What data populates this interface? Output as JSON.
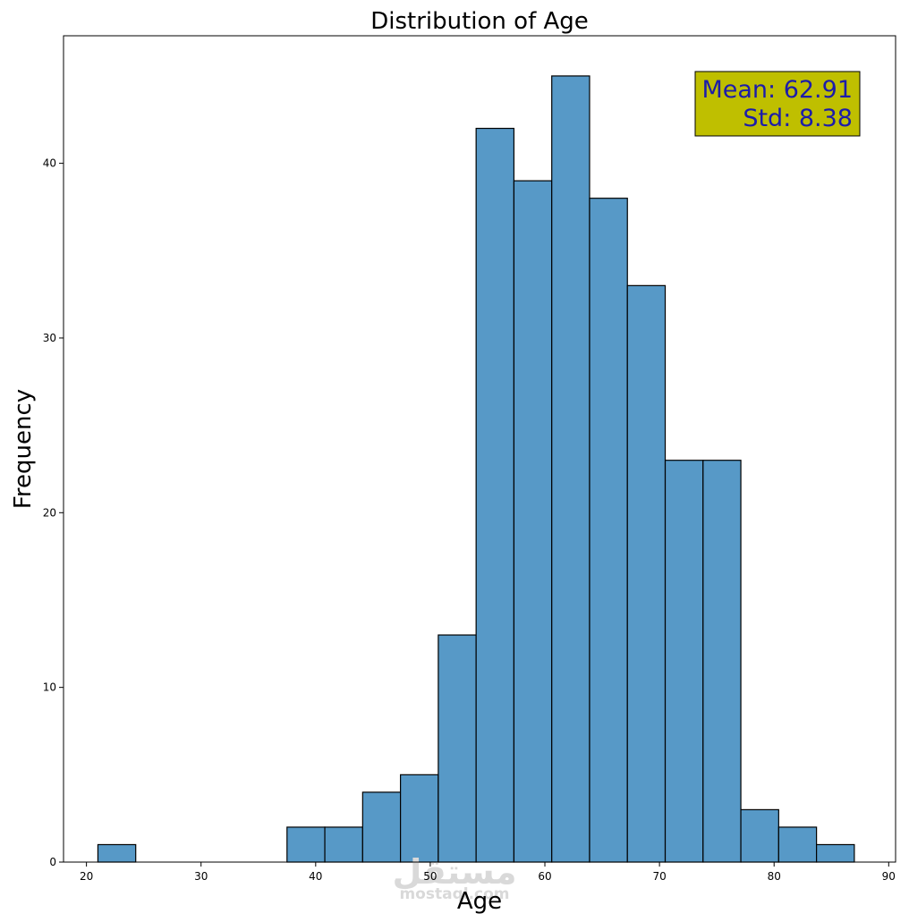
{
  "chart_data": {
    "type": "bar",
    "title": "Distribution of Age",
    "xlabel": "Age",
    "ylabel": "Frequency",
    "xlim": [
      18,
      90.6
    ],
    "ylim": [
      0,
      47.3
    ],
    "x_ticks": [
      "20",
      "30",
      "40",
      "50",
      "60",
      "70",
      "80",
      "90"
    ],
    "y_ticks": [
      "0",
      "10",
      "20",
      "30",
      "40"
    ],
    "bin_start": 21,
    "bin_width": 3.3,
    "counts": [
      1,
      0,
      0,
      0,
      0,
      2,
      2,
      4,
      5,
      13,
      42,
      39,
      45,
      38,
      33,
      23,
      23,
      3,
      2,
      1
    ],
    "bar_color": "#5799c7",
    "edge_color": "#000000",
    "grid": false,
    "annotation": {
      "lines": [
        "Mean: 62.91",
        "Std: 8.38"
      ],
      "background": "#bfbf00",
      "text_color": "#1c1caa",
      "placement": "top-right"
    }
  },
  "watermark": {
    "arabic": "مستقل",
    "latin": "mostaql.com"
  }
}
